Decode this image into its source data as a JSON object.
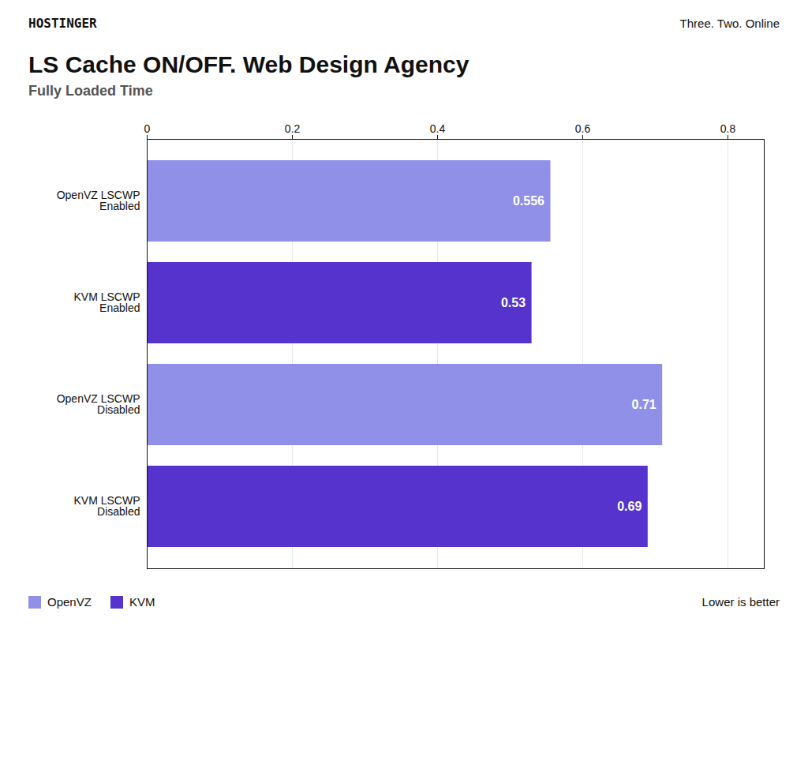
{
  "chart_data": {
    "type": "bar",
    "orientation": "horizontal",
    "title": "LS Cache ON/OFF. Web Design Agency",
    "subtitle": "Fully Loaded Time",
    "annotations": [
      "HOSTINGER",
      "Three. Two. Online",
      "Lower is better"
    ],
    "categories": [
      "OpenVZ LSCWP\nEnabled",
      "KVM LSCWP\nEnabled",
      "OpenVZ LSCWP\nDisabled",
      "KVM LSCWP\nDisabled"
    ],
    "series": [
      {
        "name": "OpenVZ",
        "color": "#9090e8",
        "values": [
          0.556,
          null,
          0.71,
          null
        ]
      },
      {
        "name": "KVM",
        "color": "#5533cc",
        "values": [
          null,
          0.53,
          null,
          0.69
        ]
      }
    ],
    "xlim": [
      0,
      0.85
    ],
    "xticks": [
      0,
      0.2,
      0.4,
      0.6,
      0.8
    ],
    "grid": true,
    "legend": "lower left",
    "data_labels": true
  }
}
